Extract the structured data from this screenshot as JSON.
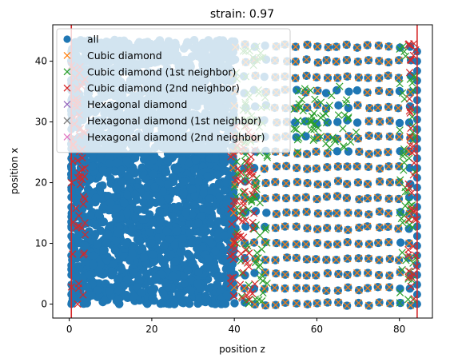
{
  "chart_data": {
    "type": "scatter",
    "title": "strain: 0.97",
    "xlabel": "position z",
    "ylabel": "position x",
    "xlim": [
      -4,
      88
    ],
    "ylim": [
      -2.3,
      46
    ],
    "xticks": [
      0,
      20,
      40,
      60,
      80
    ],
    "yticks": [
      0,
      10,
      20,
      30,
      40
    ],
    "grid": false,
    "legend_position": "top-left",
    "vertical_lines": [
      0.5,
      84.3
    ],
    "vertical_line_color": "#d62728",
    "series": [
      {
        "name": "all",
        "marker": "circle",
        "color": "#1f77b4",
        "regions": [
          {
            "description": "disordered region",
            "z_range": [
              0.5,
              40
            ],
            "x_range": [
              0,
              43.5
            ]
          },
          {
            "description": "crystalline region",
            "z_range": [
              40,
              84.3
            ],
            "x_range": [
              0,
              43
            ]
          }
        ]
      },
      {
        "name": "Cubic diamond",
        "marker": "x",
        "color": "#ff7f0e",
        "regions": [
          {
            "z_range": [
              40,
              84
            ],
            "x_range": [
              0,
              43
            ],
            "lattice_spacing_z": 2.5,
            "lattice_spacing_x": 2.5
          }
        ]
      },
      {
        "name": "Cubic diamond (1st neighbor)",
        "marker": "x",
        "color": "#2ca02c",
        "regions": [
          {
            "z_range": [
              40,
              48
            ],
            "x_range": [
              0,
              43
            ]
          },
          {
            "z_range": [
              80,
              84
            ],
            "x_range": [
              0,
              43
            ]
          },
          {
            "z_range": [
              54,
              70
            ],
            "x_range": [
              25,
              36
            ]
          }
        ]
      },
      {
        "name": "Cubic diamond (2nd neighbor)",
        "marker": "x",
        "color": "#d62728",
        "regions": [
          {
            "z_range": [
              0.5,
              4
            ],
            "x_range": [
              0,
              43
            ]
          },
          {
            "z_range": [
              39,
              45
            ],
            "x_range": [
              0,
              30
            ]
          },
          {
            "z_range": [
              82,
              84.3
            ],
            "x_range": [
              0,
              43
            ]
          }
        ]
      },
      {
        "name": "Hexagonal diamond",
        "marker": "x",
        "color": "#9467bd",
        "regions": []
      },
      {
        "name": "Hexagonal diamond (1st neighbor)",
        "marker": "x",
        "color": "#7f7f7f",
        "regions": []
      },
      {
        "name": "Hexagonal diamond (2nd neighbor)",
        "marker": "x",
        "color": "#e377c2",
        "regions": []
      }
    ]
  }
}
